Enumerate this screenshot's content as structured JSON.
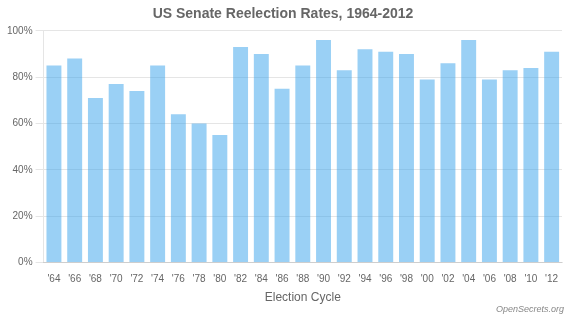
{
  "chart_data": {
    "type": "bar",
    "title": "US Senate Reelection Rates, 1964-2012",
    "xlabel": "Election Cycle",
    "annotation": "OpenSecrets.org",
    "categories": [
      "'64",
      "'66",
      "'68",
      "'70",
      "'72",
      "'74",
      "'76",
      "'78",
      "'80",
      "'82",
      "'84",
      "'86",
      "'88",
      "'90",
      "'92",
      "'94",
      "'96",
      "'98",
      "'00",
      "'02",
      "'04",
      "'06",
      "'08",
      "'10",
      "'12"
    ],
    "values": [
      85,
      88,
      71,
      77,
      74,
      85,
      64,
      60,
      55,
      93,
      90,
      75,
      85,
      96,
      83,
      92,
      91,
      90,
      79,
      86,
      96,
      79,
      83,
      84,
      91
    ],
    "ylim": [
      0,
      100
    ],
    "yticks": [
      {
        "value": 0,
        "label": "0%"
      },
      {
        "value": 20,
        "label": "20%"
      },
      {
        "value": 40,
        "label": "40%"
      },
      {
        "value": 60,
        "label": "60%"
      },
      {
        "value": 80,
        "label": "80%"
      },
      {
        "value": 100,
        "label": "100%"
      }
    ],
    "grid": true
  }
}
